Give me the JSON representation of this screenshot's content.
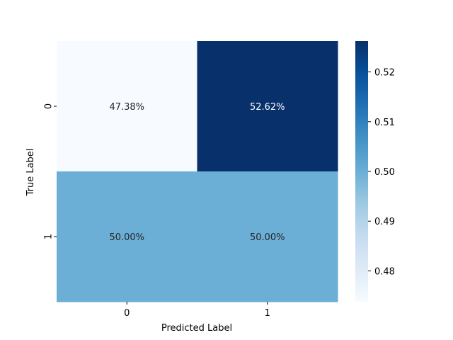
{
  "chart_data": {
    "type": "heatmap",
    "title": "",
    "xlabel": "Predicted Label",
    "ylabel": "True Label",
    "x_categories": [
      "0",
      "1"
    ],
    "y_categories": [
      "0",
      "1"
    ],
    "values": [
      [
        0.4738,
        0.5262
      ],
      [
        0.5,
        0.5
      ]
    ],
    "annotations": [
      [
        "47.38%",
        "52.62%"
      ],
      [
        "50.00%",
        "50.00%"
      ]
    ],
    "colormap": "Blues",
    "colorbar": {
      "range": [
        0.4738,
        0.5262
      ],
      "ticks": [
        0.48,
        0.49,
        0.5,
        0.51,
        0.52
      ],
      "tick_labels": [
        "0.48",
        "0.49",
        "0.50",
        "0.51",
        "0.52"
      ]
    },
    "colors": {
      "low": "#f7fbff",
      "mid": "#6baed6",
      "high": "#08306b",
      "annotation_light_bg": "#262626",
      "annotation_dark_bg": "#ffffff"
    }
  }
}
